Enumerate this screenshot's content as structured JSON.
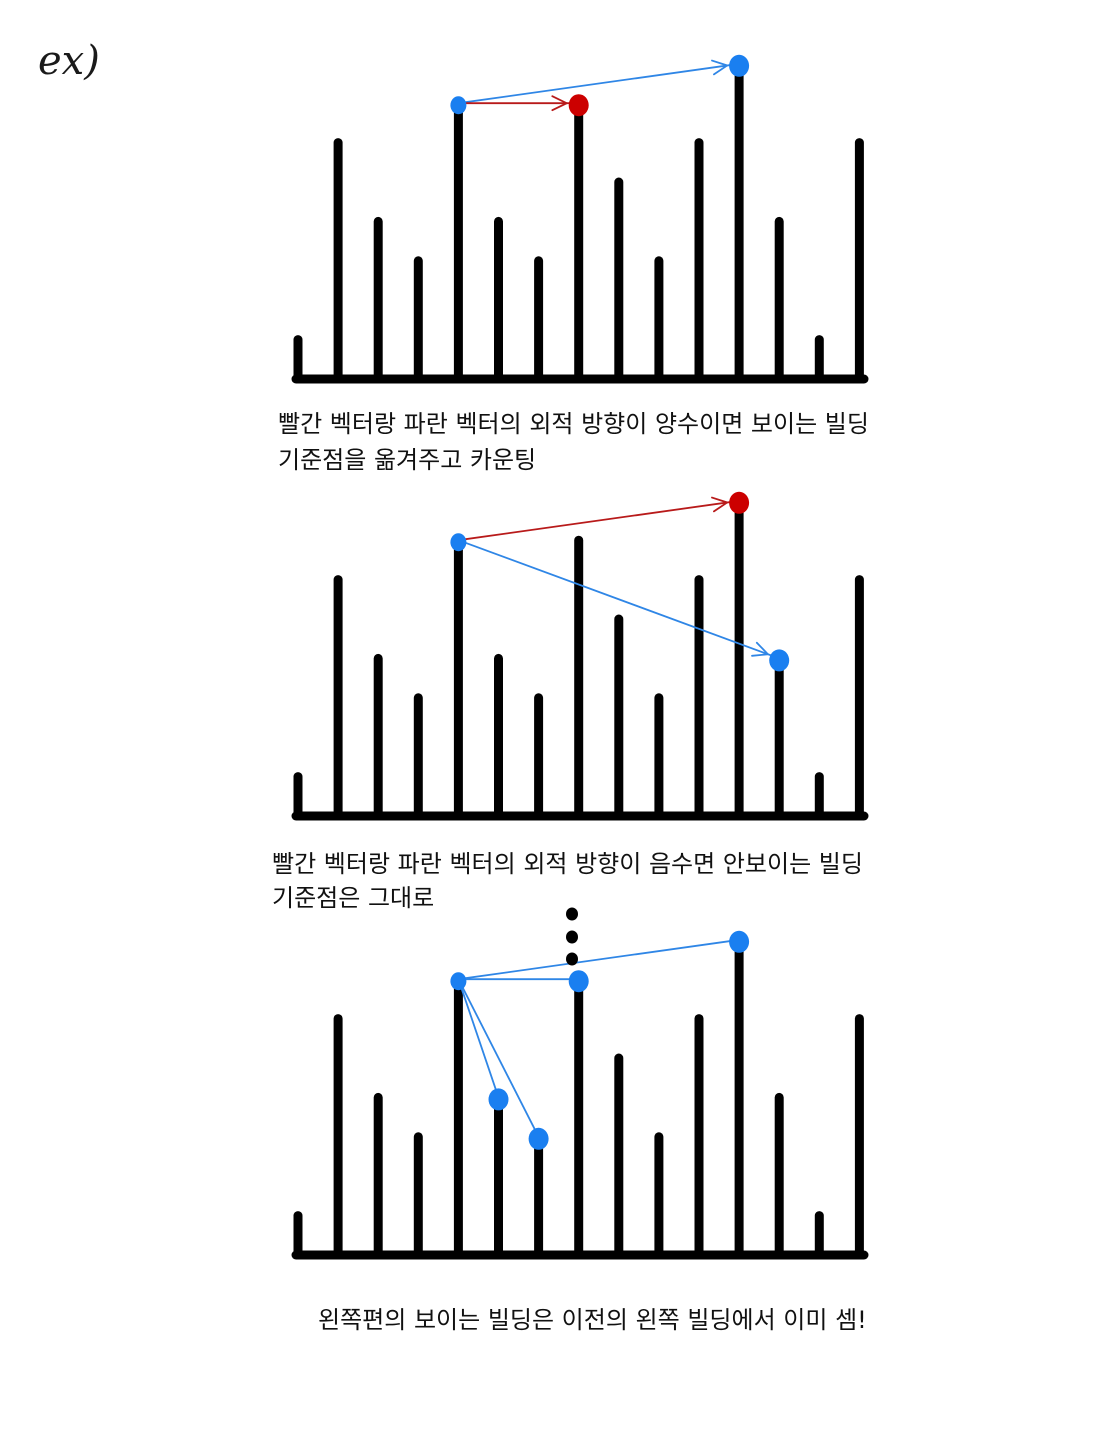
{
  "colors": {
    "bar": "#000000",
    "blue": "#1a7ff0",
    "red": "#cc0000",
    "blue_line": "#2f86e6",
    "red_line": "#b81a1a"
  },
  "label": "ex)",
  "buildings": [
    1,
    6,
    4,
    3,
    7,
    4,
    3,
    7,
    5,
    3,
    6,
    8,
    4,
    1,
    6
  ],
  "panels": [
    {
      "caption_lines": [
        "빨간 벡터랑 파란 벡터의 외적 방향이 양수이면 보이는 빌딩",
        "기준점을 옮겨주고 카운팅"
      ],
      "vectors": [
        {
          "color": "blue",
          "from": 4,
          "to": 11,
          "arrow": true
        },
        {
          "color": "red",
          "from": 4,
          "to": 7,
          "arrow": true
        }
      ],
      "points": [
        {
          "index": 4,
          "color": "blue"
        },
        {
          "index": 7,
          "color": "red"
        },
        {
          "index": 11,
          "color": "blue"
        }
      ]
    },
    {
      "caption_lines": [
        "빨간 벡터랑 파란 벡터의 외적 방향이 음수면 안보이는 빌딩",
        "기준점은 그대로"
      ],
      "vectors": [
        {
          "color": "red",
          "from": 4,
          "to": 11,
          "arrow": true
        },
        {
          "color": "blue",
          "from": 4,
          "to": 12,
          "arrow": true
        }
      ],
      "points": [
        {
          "index": 4,
          "color": "blue"
        },
        {
          "index": 11,
          "color": "red"
        },
        {
          "index": 12,
          "color": "blue"
        }
      ]
    },
    {
      "caption_lines": [
        "왼쪽편의 보이는 빌딩은 이전의 왼쪽 빌딩에서 이미 셈!"
      ],
      "vectors": [
        {
          "color": "blue",
          "from": 4,
          "to": 11,
          "arrow": false
        },
        {
          "color": "blue",
          "from": 4,
          "to": 7,
          "arrow": false
        },
        {
          "color": "blue",
          "from": 4,
          "to": 5,
          "arrow": false
        },
        {
          "color": "blue",
          "from": 4,
          "to": 6,
          "arrow": false
        }
      ],
      "points": [
        {
          "index": 4,
          "color": "blue"
        },
        {
          "index": 5,
          "color": "blue"
        },
        {
          "index": 6,
          "color": "blue"
        },
        {
          "index": 7,
          "color": "blue"
        },
        {
          "index": 11,
          "color": "blue"
        }
      ]
    }
  ]
}
